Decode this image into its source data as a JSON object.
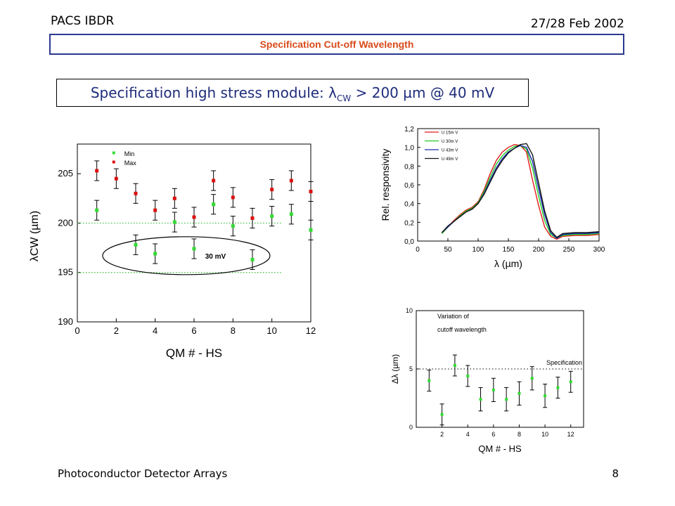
{
  "header": {
    "left": "PACS IBDR",
    "right": "27/28 Feb 2002"
  },
  "title": "Specification Cut-off Wavelength",
  "spec": {
    "prefix": "Specification high stress module: ",
    "symbol": "λ",
    "sub": "CW",
    "suffix": " > 200 µm @ 40 mV"
  },
  "footer": {
    "left": "Photoconductor Detector Arrays",
    "right": "8"
  },
  "colors": {
    "title_text": "#d94a1b",
    "title_border": "#2b3990",
    "spec_text": "#1f2d7a",
    "min": "#33dd33",
    "max": "#dd1111",
    "guide": "#33bb33"
  },
  "chart_data": [
    {
      "type": "scatter",
      "xlabel": "QM # - HS",
      "ylabel": "λCW (µm)",
      "xlim": [
        0,
        12
      ],
      "ylim": [
        190,
        208
      ],
      "xticks": [
        0,
        2,
        4,
        6,
        8,
        10,
        12
      ],
      "yticks": [
        190,
        195,
        200,
        205
      ],
      "legend": [
        "Min",
        "Max"
      ],
      "legend_position": "top-center",
      "annotation": "30 mV",
      "guides": [
        200,
        195
      ],
      "series": [
        {
          "name": "Min",
          "x": [
            1,
            3,
            4,
            5,
            6,
            7,
            8,
            9,
            10,
            11,
            12
          ],
          "y": [
            201.3,
            197.8,
            196.9,
            200.1,
            197.4,
            201.9,
            199.7,
            196.3,
            200.7,
            200.9,
            199.3
          ],
          "err": 1.0
        },
        {
          "name": "Max",
          "x": [
            1,
            2,
            3,
            4,
            5,
            6,
            7,
            8,
            9,
            10,
            11,
            12
          ],
          "y": [
            205.3,
            204.5,
            203.0,
            201.3,
            202.5,
            200.6,
            204.3,
            202.6,
            200.5,
            203.4,
            204.3,
            203.2
          ],
          "err": 1.0
        }
      ]
    },
    {
      "type": "line",
      "xlabel": "λ (µm)",
      "ylabel": "Rel. responsivity",
      "xlim": [
        0,
        300
      ],
      "ylim": [
        0,
        1.2
      ],
      "xticks": [
        0,
        50,
        100,
        150,
        200,
        250,
        300
      ],
      "yticks": [
        "0,0",
        "0,2",
        "0,4",
        "0,6",
        "0,8",
        "1,0",
        "1,2"
      ],
      "legend_position": "top-left",
      "series": [
        {
          "name": "U 15m V",
          "color": "#e31a1c",
          "x": [
            40,
            50,
            60,
            70,
            80,
            90,
            100,
            110,
            120,
            130,
            140,
            150,
            160,
            170,
            180,
            190,
            200,
            210,
            220,
            230,
            240,
            260,
            280,
            300
          ],
          "y": [
            0.08,
            0.15,
            0.22,
            0.28,
            0.33,
            0.36,
            0.42,
            0.55,
            0.72,
            0.86,
            0.95,
            1.0,
            1.03,
            1.02,
            0.95,
            0.65,
            0.38,
            0.15,
            0.05,
            0.02,
            0.05,
            0.06,
            0.06,
            0.07
          ]
        },
        {
          "name": "U 30m V",
          "color": "#22cc22",
          "x": [
            40,
            50,
            60,
            70,
            80,
            90,
            100,
            110,
            120,
            130,
            140,
            150,
            160,
            170,
            180,
            190,
            200,
            210,
            220,
            230,
            240,
            260,
            280,
            300
          ],
          "y": [
            0.08,
            0.15,
            0.21,
            0.27,
            0.32,
            0.35,
            0.41,
            0.53,
            0.68,
            0.82,
            0.91,
            0.97,
            1.01,
            1.02,
            0.98,
            0.78,
            0.48,
            0.22,
            0.07,
            0.03,
            0.06,
            0.07,
            0.07,
            0.08
          ]
        },
        {
          "name": "U 43m V",
          "color": "#1a2ab0",
          "x": [
            40,
            50,
            60,
            70,
            80,
            90,
            100,
            110,
            120,
            130,
            140,
            150,
            160,
            170,
            180,
            190,
            200,
            210,
            220,
            230,
            240,
            260,
            280,
            300
          ],
          "y": [
            0.09,
            0.15,
            0.21,
            0.26,
            0.31,
            0.34,
            0.4,
            0.51,
            0.65,
            0.78,
            0.88,
            0.95,
            0.99,
            1.02,
            1.0,
            0.85,
            0.56,
            0.28,
            0.09,
            0.03,
            0.07,
            0.08,
            0.08,
            0.09
          ]
        },
        {
          "name": "U 49m V",
          "color": "#111111",
          "x": [
            40,
            50,
            60,
            70,
            80,
            90,
            100,
            110,
            120,
            130,
            140,
            150,
            160,
            170,
            180,
            190,
            200,
            210,
            220,
            230,
            240,
            260,
            280,
            300
          ],
          "y": [
            0.09,
            0.16,
            0.21,
            0.26,
            0.31,
            0.34,
            0.4,
            0.5,
            0.63,
            0.76,
            0.86,
            0.94,
            0.99,
            1.03,
            1.04,
            0.92,
            0.62,
            0.32,
            0.11,
            0.04,
            0.08,
            0.09,
            0.09,
            0.1
          ]
        }
      ]
    },
    {
      "type": "scatter",
      "xlabel": "QM # - HS",
      "ylabel": "Δλ (µm)",
      "xlim": [
        0,
        13
      ],
      "ylim": [
        0,
        10
      ],
      "xticks": [
        2,
        4,
        6,
        8,
        10,
        12
      ],
      "yticks": [
        0,
        5,
        10
      ],
      "annotation": "Variation of cutoff wavelength",
      "annotation_lines": [
        "Variation of",
        "cutoff wavelength"
      ],
      "guide_label": "Specification",
      "guide": 5,
      "series": [
        {
          "name": "",
          "x": [
            1,
            2,
            3,
            4,
            5,
            6,
            7,
            8,
            9,
            10,
            11,
            12
          ],
          "y": [
            4.0,
            1.1,
            5.3,
            4.4,
            2.4,
            3.2,
            2.4,
            2.9,
            4.2,
            2.7,
            3.4,
            3.9
          ],
          "err": [
            0.9,
            0.9,
            0.9,
            0.9,
            1.0,
            1.0,
            1.0,
            1.0,
            1.0,
            1.0,
            0.9,
            0.9
          ]
        }
      ]
    }
  ]
}
